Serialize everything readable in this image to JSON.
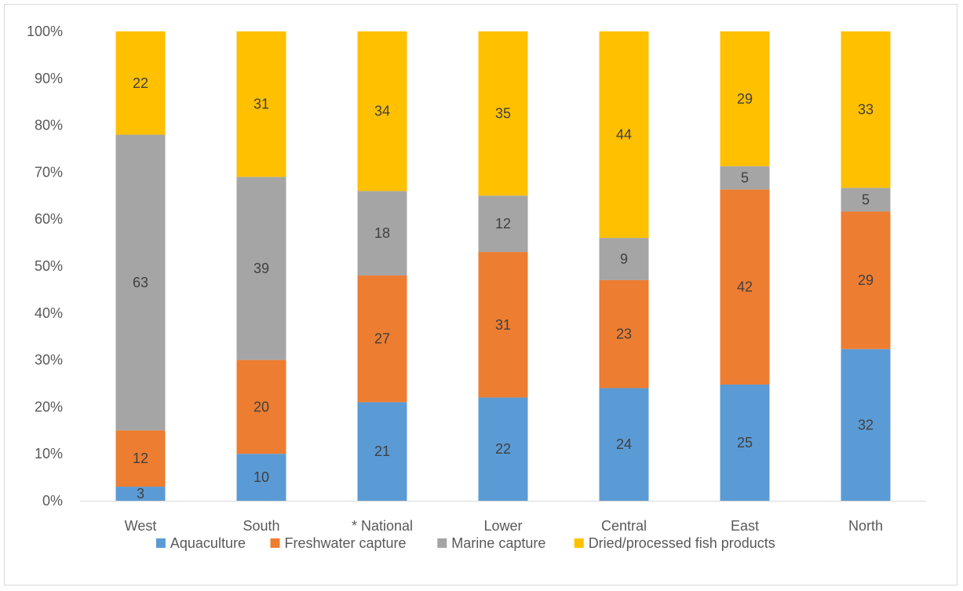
{
  "chart_data": {
    "type": "bar",
    "stacked": true,
    "normalized": true,
    "categories": [
      "West",
      "South",
      "* National",
      "Lower",
      "Central",
      "East",
      "North"
    ],
    "series": [
      {
        "name": "Aquaculture",
        "color": "#5b9bd5",
        "values": [
          3,
          10,
          21,
          22,
          24,
          25,
          32
        ],
        "label_color": "#404040"
      },
      {
        "name": "Freshwater capture",
        "color": "#ed7d31",
        "values": [
          12,
          20,
          27,
          31,
          23,
          42,
          29
        ],
        "label_color": "#404040"
      },
      {
        "name": "Marine capture",
        "color": "#a5a5a5",
        "values": [
          63,
          39,
          18,
          12,
          9,
          5,
          5
        ],
        "label_color": "#404040"
      },
      {
        "name": "Dried/processed fish products",
        "color": "#ffc000",
        "values": [
          22,
          31,
          34,
          35,
          44,
          29,
          33
        ],
        "label_color": "#404040"
      }
    ],
    "y_ticks": [
      "0%",
      "10%",
      "20%",
      "30%",
      "40%",
      "50%",
      "60%",
      "70%",
      "80%",
      "90%",
      "100%"
    ],
    "ylim": [
      0,
      100
    ],
    "grid": false,
    "legend_position": "bottom",
    "axis_color": "#d9d9d9"
  }
}
